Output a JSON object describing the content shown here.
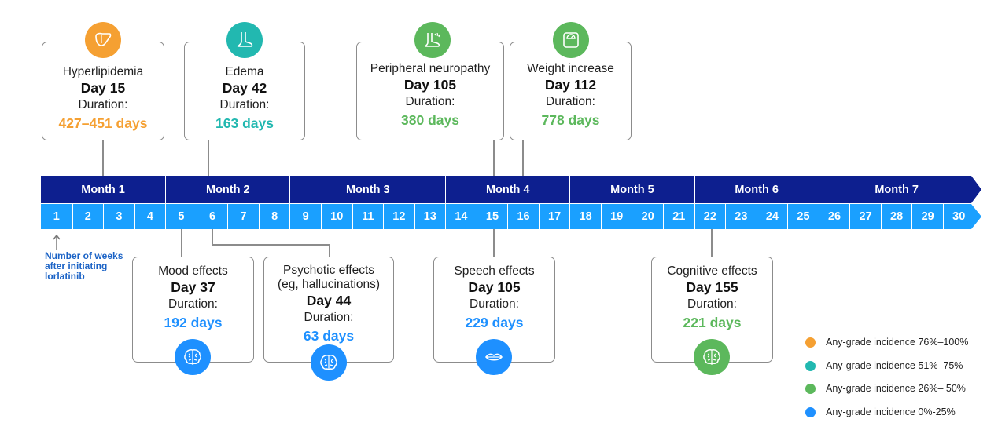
{
  "colors": {
    "orange": "#f5a032",
    "teal": "#22b8b0",
    "green": "#5cb85c",
    "blue": "#1e90ff",
    "month_bar": "#0d1f8f",
    "week_bar": "#1aa0ff"
  },
  "events_top": [
    {
      "name": "Hyperlipidemia",
      "day": "Day 15",
      "duration_label": "Duration:",
      "duration": "427–451 days",
      "color": "orange",
      "icon": "liver-icon"
    },
    {
      "name": "Edema",
      "day": "Day 42",
      "duration_label": "Duration:",
      "duration": "163 days",
      "color": "teal",
      "icon": "foot-icon"
    },
    {
      "name": "Peripheral neuropathy",
      "day": "Day 105",
      "duration_label": "Duration:",
      "duration": "380 days",
      "color": "green",
      "icon": "nerve-foot-icon"
    },
    {
      "name": "Weight increase",
      "day": "Day 112",
      "duration_label": "Duration:",
      "duration": "778 days",
      "color": "green",
      "icon": "scale-icon"
    }
  ],
  "events_bottom": [
    {
      "name": "Mood effects",
      "day": "Day 37",
      "duration_label": "Duration:",
      "duration": "192 days",
      "color": "blue",
      "icon": "brain-icon"
    },
    {
      "name": "Psychotic effects",
      "name_line2": "(eg, hallucinations)",
      "day": "Day 44",
      "duration_label": "Duration:",
      "duration": "63 days",
      "color": "blue",
      "icon": "brain-icon"
    },
    {
      "name": "Speech effects",
      "day": "Day 105",
      "duration_label": "Duration:",
      "duration": "229 days",
      "color": "blue",
      "icon": "lips-icon"
    },
    {
      "name": "Cognitive effects",
      "day": "Day 155",
      "duration_label": "Duration:",
      "duration": "221 days",
      "color": "green",
      "icon": "brain-icon"
    }
  ],
  "months": [
    "Month 1",
    "Month 2",
    "Month 3",
    "Month 4",
    "Month 5",
    "Month 6",
    "Month 7"
  ],
  "month_week_counts": [
    4,
    4,
    5,
    4,
    4,
    4,
    5
  ],
  "weeks": [
    "1",
    "2",
    "3",
    "4",
    "5",
    "6",
    "7",
    "8",
    "9",
    "10",
    "11",
    "12",
    "13",
    "14",
    "15",
    "16",
    "17",
    "18",
    "19",
    "20",
    "21",
    "22",
    "23",
    "24",
    "25",
    "26",
    "27",
    "28",
    "29",
    "30"
  ],
  "axis_note": [
    "Number of weeks",
    "after initiating",
    "lorlatinib"
  ],
  "legend": [
    {
      "label": "Any-grade incidence 76%–100%",
      "color": "orange"
    },
    {
      "label": "Any-grade incidence 51%–75%",
      "color": "teal"
    },
    {
      "label": "Any-grade incidence 26%– 50%",
      "color": "green"
    },
    {
      "label": "Any-grade incidence 0%-25%",
      "color": "blue"
    }
  ]
}
